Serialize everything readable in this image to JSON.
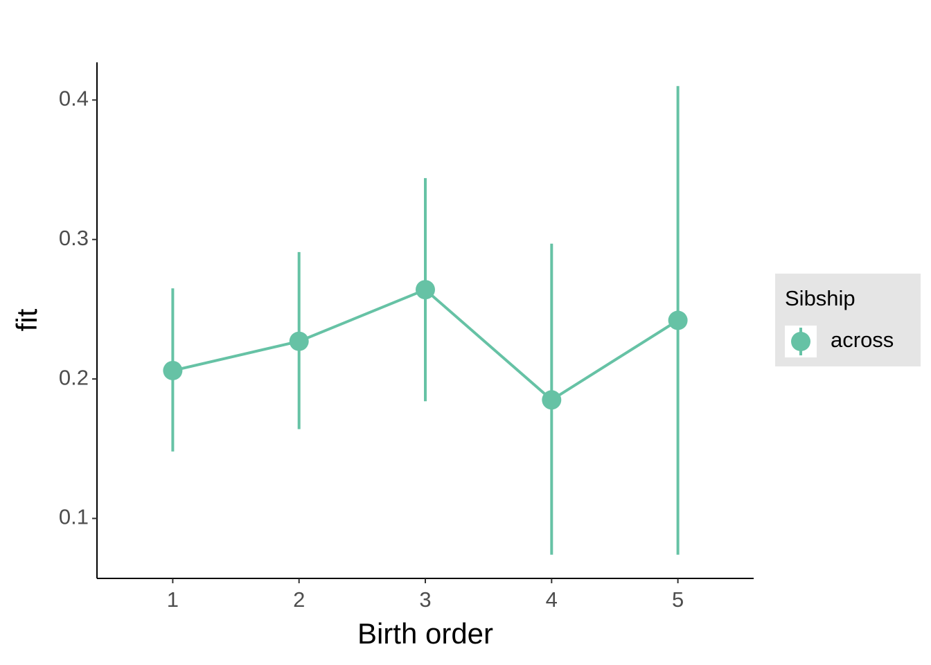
{
  "chart_data": {
    "type": "line",
    "x_label": "Birth order",
    "y_label": "fit",
    "x": [
      1,
      2,
      3,
      4,
      5
    ],
    "series": [
      {
        "name": "across",
        "color": "#66c2a5",
        "values": [
          0.206,
          0.227,
          0.264,
          0.185,
          0.242
        ],
        "lower": [
          0.148,
          0.164,
          0.184,
          0.074,
          0.074
        ],
        "upper": [
          0.265,
          0.291,
          0.344,
          0.297,
          0.41
        ]
      }
    ],
    "legend_title": "Sibship",
    "legend_position": "right",
    "xlim": [
      0.4,
      5.6
    ],
    "xticks": [
      1,
      2,
      3,
      4,
      5
    ],
    "ylim": [
      0.057,
      0.427
    ],
    "yticks": [
      0.1,
      0.2,
      0.3,
      0.4
    ],
    "grid": false
  }
}
